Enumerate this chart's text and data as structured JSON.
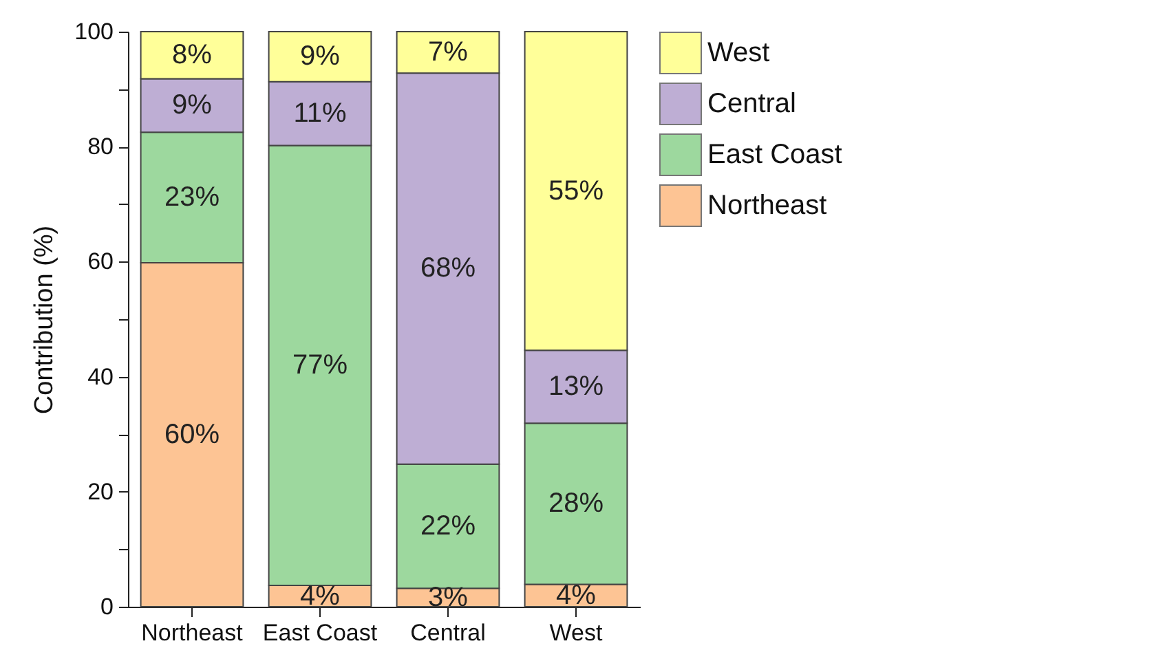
{
  "chart_data": {
    "type": "bar",
    "stacked": true,
    "ylabel": "Contribution (%)",
    "categories": [
      "Northeast",
      "East Coast",
      "Central",
      "West"
    ],
    "series": [
      {
        "name": "Northeast",
        "color": "#fdc494",
        "values": [
          59.8,
          3.7,
          3.2,
          3.9
        ],
        "value_labels": [
          "60%",
          "4%",
          "3%",
          "4%"
        ]
      },
      {
        "name": "East Coast",
        "color": "#9dd89e",
        "values": [
          22.7,
          76.5,
          21.6,
          28.0
        ],
        "value_labels": [
          "23%",
          "77%",
          "22%",
          "28%"
        ]
      },
      {
        "name": "Central",
        "color": "#beaed4",
        "values": [
          9.3,
          11.1,
          68.0,
          12.7
        ],
        "value_labels": [
          "9%",
          "11%",
          "68%",
          "13%"
        ]
      },
      {
        "name": "West",
        "color": "#ffff99",
        "values": [
          8.2,
          8.7,
          7.2,
          55.4
        ],
        "value_labels": [
          "8%",
          "9%",
          "7%",
          "55%"
        ]
      }
    ],
    "ylim": [
      0,
      100
    ],
    "yticks": [
      0,
      {
        "value": 10,
        "label": null
      },
      20,
      {
        "value": 30,
        "label": null
      },
      40,
      {
        "value": 50,
        "label": null
      },
      60,
      {
        "value": 70,
        "label": null
      },
      80,
      {
        "value": 90,
        "label": null
      },
      100
    ],
    "legend": "top right",
    "grid": false
  }
}
